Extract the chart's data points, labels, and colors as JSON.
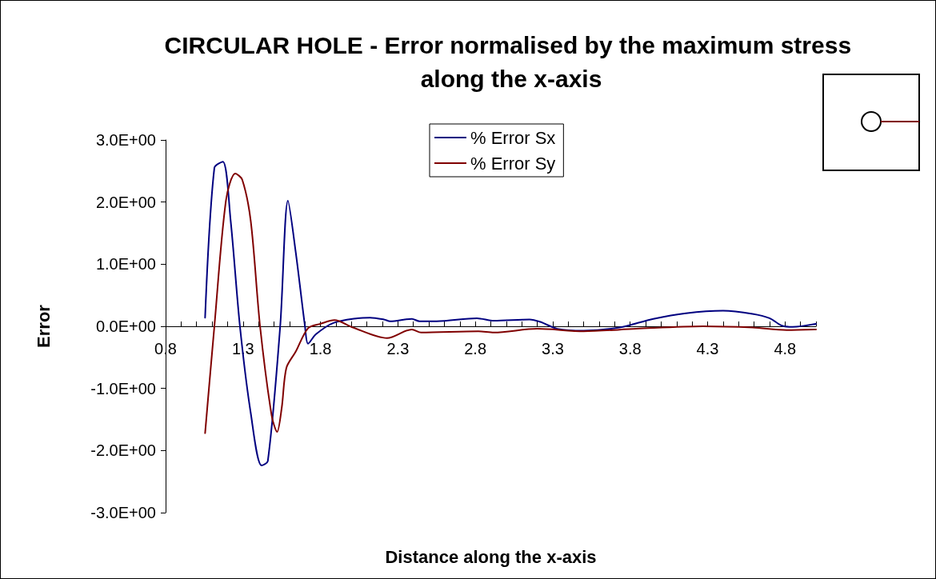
{
  "chart_data": {
    "type": "line",
    "title": "CIRCULAR HOLE - Error normalised by the maximum stress along the x-axis",
    "xlabel": "Distance along the x-axis",
    "ylabel": "Error",
    "xlim": [
      0.8,
      5.0
    ],
    "ylim": [
      -3,
      3
    ],
    "xticks": [
      0.8,
      {
        "value": 0.9,
        "label": null
      },
      {
        "value": 1.0,
        "label": null
      },
      {
        "value": 1.1,
        "label": null
      },
      {
        "value": 1.2,
        "label": null
      },
      1.3,
      {
        "value": 1.4,
        "label": null
      },
      {
        "value": 1.5,
        "label": null
      },
      {
        "value": 1.6,
        "label": null
      },
      {
        "value": 1.7,
        "label": null
      },
      1.8,
      {
        "value": 1.9,
        "label": null
      },
      {
        "value": 2.0,
        "label": null
      },
      {
        "value": 2.1,
        "label": null
      },
      {
        "value": 2.2,
        "label": null
      },
      2.3,
      {
        "value": 2.4,
        "label": null
      },
      {
        "value": 2.5,
        "label": null
      },
      {
        "value": 2.6,
        "label": null
      },
      {
        "value": 2.7,
        "label": null
      },
      2.8,
      {
        "value": 2.9,
        "label": null
      },
      {
        "value": 3.0,
        "label": null
      },
      {
        "value": 3.1,
        "label": null
      },
      {
        "value": 3.2,
        "label": null
      },
      3.3,
      {
        "value": 3.4,
        "label": null
      },
      {
        "value": 3.5,
        "label": null
      },
      {
        "value": 3.6,
        "label": null
      },
      {
        "value": 3.7,
        "label": null
      },
      3.8,
      {
        "value": 3.9,
        "label": null
      },
      {
        "value": 4.0,
        "label": null
      },
      {
        "value": 4.1,
        "label": null
      },
      {
        "value": 4.2,
        "label": null
      },
      4.3,
      {
        "value": 4.4,
        "label": null
      },
      {
        "value": 4.5,
        "label": null
      },
      {
        "value": 4.6,
        "label": null
      },
      {
        "value": 4.7,
        "label": null
      },
      4.8,
      {
        "value": 4.9,
        "label": null
      },
      {
        "value": 5.0,
        "label": null
      }
    ],
    "yticks": [
      {
        "value": -3,
        "label": "-3.0E+00"
      },
      {
        "value": -2,
        "label": "-2.0E+00"
      },
      {
        "value": -1,
        "label": "-1.0E+00"
      },
      {
        "value": 0,
        "label": "0.0E+00"
      },
      {
        "value": 1,
        "label": "1.0E+00"
      },
      {
        "value": 2,
        "label": "2.0E+00"
      },
      {
        "value": 3,
        "label": "3.0E+00"
      }
    ],
    "grid": false,
    "legend": "top",
    "marker": "none",
    "line_style": "solid",
    "series": [
      {
        "name": "% Error Sx",
        "color": "#000080",
        "x": [
          1.055,
          1.115,
          1.17,
          1.22,
          1.28,
          1.35,
          1.42,
          1.46,
          1.54,
          1.59,
          1.64,
          1.7,
          1.72,
          1.77,
          1.88,
          2.04,
          2.12,
          2.21,
          2.25,
          2.39,
          2.44,
          2.55,
          2.81,
          2.92,
          3.15,
          3.22,
          3.33,
          3.5,
          3.73,
          3.95,
          4.16,
          4.4,
          4.59,
          4.7,
          4.78,
          4.85,
          5.0
        ],
        "values": [
          0.14,
          2.55,
          2.65,
          1.7,
          0,
          -1.4,
          -2.24,
          -2.17,
          0,
          2.02,
          1.2,
          0,
          -0.28,
          -0.13,
          0.05,
          0.13,
          0.14,
          0.11,
          0.08,
          0.12,
          0.08,
          0.08,
          0.13,
          0.09,
          0.11,
          0.07,
          -0.04,
          -0.07,
          -0.02,
          0.12,
          0.21,
          0.25,
          0.2,
          0.13,
          0.01,
          -0.01,
          0.04
        ]
      },
      {
        "name": "% Error Sy",
        "color": "#800000",
        "x": [
          1.055,
          1.115,
          1.19,
          1.25,
          1.295,
          1.35,
          1.41,
          1.485,
          1.52,
          1.55,
          1.58,
          1.64,
          1.72,
          1.8,
          1.89,
          2.01,
          2.23,
          2.39,
          2.45,
          2.82,
          2.92,
          3.2,
          3.5,
          3.84,
          4.27,
          4.59,
          4.81,
          5.0
        ],
        "values": [
          -1.72,
          0,
          2.03,
          2.46,
          2.36,
          1.69,
          0,
          -1.44,
          -1.7,
          -1.31,
          -0.67,
          -0.41,
          -0.03,
          0.04,
          0.1,
          -0.02,
          -0.19,
          -0.05,
          -0.1,
          -0.08,
          -0.1,
          -0.04,
          -0.08,
          -0.04,
          0,
          -0.02,
          -0.06,
          -0.05
        ]
      }
    ]
  }
}
